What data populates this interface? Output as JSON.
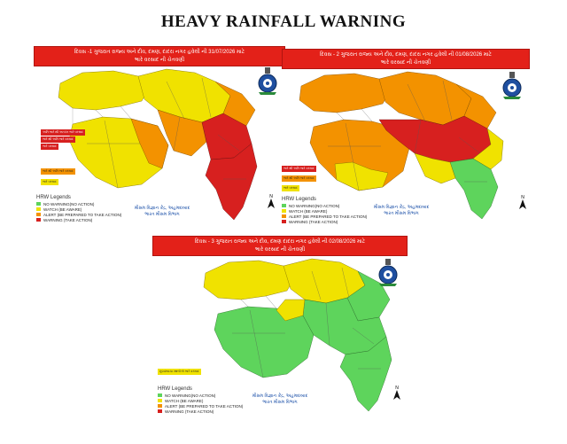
{
  "title": "HEAVY RAINFALL WARNING",
  "colors": {
    "green": "#5ed45c",
    "yellow": "#f0e200",
    "orange": "#f39200",
    "red": "#d7201f",
    "banner": "#e32119"
  },
  "legend": {
    "title": "HRW Legends",
    "items": [
      {
        "label": "NO WARNING(NO ACTION)",
        "color": "#5ed45c"
      },
      {
        "label": "WATCH (BE AWARE)",
        "color": "#f0e200"
      },
      {
        "label": "ALERT (BE PREPARED TO TAKE ACTION)",
        "color": "#f39200"
      },
      {
        "label": "WARNING (TAKE ACTION)",
        "color": "#d7201f"
      }
    ]
  },
  "imd_text": {
    "line1": "મૌસમ વિજ્ઞાન કેંદ્ર, અહમદાબાદ",
    "line2": "ભારત મૌસમ વિભાગ"
  },
  "north_label": "N",
  "panels": [
    {
      "banner_line1": "દિવસ -1 ગુજરાત રાજ્ય અને દીવ, દમણ, દાદરા નગર હવેલી ની 31/07/2026 માટે",
      "banner_line2": "ભારે વરસાદ ની ચેતવણી",
      "tags": [
        {
          "text": "અતિ ભારે થી અત્યંત ભારે વરસાદ",
          "color": "#d7201f"
        },
        {
          "text": "ભારે થી અતિ ભારે વરસાદ",
          "color": "#d7201f"
        },
        {
          "text": "ભારે વરસાદ",
          "color": "#d7201f"
        },
        {
          "text": "ભારે થી અતિ ભારે વરસાદ",
          "color": "#f39200"
        },
        {
          "text": "ભારે વરસાદ",
          "color": "#f0e200"
        }
      ]
    },
    {
      "banner_line1": "દિવસ - 2 ગુજરાત રાજ્ય અને દીવ, દમણ, દાદરા નગર હવેલી ની 01/08/2026 માટે",
      "banner_line2": "ભારે વરસાદ ની ચેતવણી",
      "tags": [
        {
          "text": "ભારે થી અતિ ભારે વરસાદ",
          "color": "#d7201f"
        },
        {
          "text": "ભારે થી અતિ ભારે વરસાદ",
          "color": "#f39200"
        },
        {
          "text": "ભારે વરસાદ",
          "color": "#f0e200"
        }
      ]
    },
    {
      "banner_line1": "દિવસ - 3 ગુજરાત રાજ્ય અને દીવ, દમણ દાદરા નગર હવેલી ની 02/08/2026 માટે",
      "banner_line2": "ભારે વરસાદ ની ચેતવણી",
      "tags": [
        {
          "text": "છૂટાછવાયા સ્થળોએ ભારે વરસાદ",
          "color": "#f0e200"
        }
      ]
    }
  ]
}
